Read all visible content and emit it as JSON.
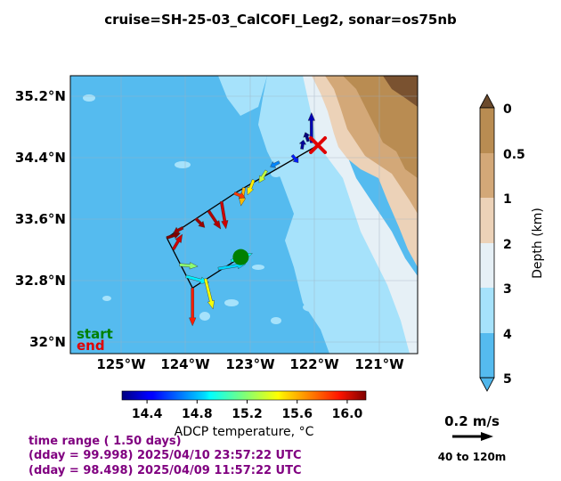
{
  "title": "cruise=SH-25-03_CalCOFI_Leg2,   sonar=os75nb",
  "map": {
    "lat_ticks": [
      "35.2°N",
      "34.4°N",
      "33.6°N",
      "32.8°N",
      "32°N"
    ],
    "lon_ticks": [
      "125°W",
      "124°W",
      "123°W",
      "122°W",
      "121°W"
    ],
    "start_label": "start",
    "end_label": "end",
    "start_color": "#008000",
    "end_color": "#e00000"
  },
  "depth_colorbar": {
    "label": "Depth (km)",
    "ticks": [
      "0",
      "0.5",
      "1",
      "2",
      "3",
      "4",
      "5"
    ],
    "colors": [
      "#7a5230",
      "#b98c52",
      "#d3a878",
      "#ecd2b8",
      "#e6f0f6",
      "#a6e2fb",
      "#55bbef"
    ]
  },
  "temp_colorbar": {
    "label": "ADCP temperature, °C",
    "ticks": [
      "14.4",
      "14.8",
      "15.2",
      "15.6",
      "16.0"
    ],
    "range": [
      14.2,
      16.15
    ]
  },
  "time_range": {
    "line1": "time range ( 1.50 days)",
    "line2": "(dday = 99.998) 2025/04/10 23:57:22 UTC",
    "line3": "(dday = 98.498) 2025/04/09 11:57:22 UTC",
    "color": "#800080"
  },
  "scale_arrow": {
    "speed_label": "0.2 m/s",
    "depth_label": "40 to 120m"
  },
  "chart_data": {
    "type": "quiver",
    "xlim": [
      -125.8,
      -120.4
    ],
    "ylim": [
      31.85,
      35.45
    ],
    "track": [
      {
        "lon": -121.95,
        "lat": 34.55
      },
      {
        "lon": -123.2,
        "lat": 33.95
      },
      {
        "lon": -124.3,
        "lat": 33.35
      },
      {
        "lon": -123.9,
        "lat": 32.7
      },
      {
        "lon": -123.15,
        "lat": 33.1
      }
    ],
    "start": {
      "lon": -123.15,
      "lat": 33.1
    },
    "end": {
      "lon": -121.95,
      "lat": 34.55
    },
    "vectors": [
      {
        "lon": -122.1,
        "lat": 34.6,
        "u": -0.02,
        "v": 0.06,
        "temp": 14.2
      },
      {
        "lon": -122.05,
        "lat": 34.58,
        "u": 0.0,
        "v": 0.2,
        "temp": 14.3
      },
      {
        "lon": -122.2,
        "lat": 34.5,
        "u": 0.01,
        "v": 0.06,
        "temp": 14.25
      },
      {
        "lon": -122.35,
        "lat": 34.42,
        "u": 0.04,
        "v": -0.05,
        "temp": 14.5
      },
      {
        "lon": -122.55,
        "lat": 34.33,
        "u": -0.06,
        "v": -0.03,
        "temp": 14.7
      },
      {
        "lon": -122.75,
        "lat": 34.22,
        "u": -0.05,
        "v": -0.08,
        "temp": 15.3
      },
      {
        "lon": -122.95,
        "lat": 34.1,
        "u": -0.04,
        "v": -0.1,
        "temp": 15.45
      },
      {
        "lon": -123.1,
        "lat": 34.0,
        "u": -0.02,
        "v": -0.12,
        "temp": 15.55
      },
      {
        "lon": -123.25,
        "lat": 33.93,
        "u": 0.07,
        "v": -0.03,
        "temp": 15.8
      },
      {
        "lon": -123.45,
        "lat": 33.82,
        "u": 0.03,
        "v": -0.18,
        "temp": 16.0
      },
      {
        "lon": -123.65,
        "lat": 33.7,
        "u": 0.08,
        "v": -0.12,
        "temp": 16.05
      },
      {
        "lon": -123.85,
        "lat": 33.6,
        "u": 0.06,
        "v": -0.06,
        "temp": 16.1
      },
      {
        "lon": -124.05,
        "lat": 33.48,
        "u": -0.06,
        "v": -0.03,
        "temp": 16.1
      },
      {
        "lon": -124.3,
        "lat": 33.35,
        "u": 0.09,
        "v": 0.03,
        "temp": 16.15
      },
      {
        "lon": -124.2,
        "lat": 33.2,
        "u": 0.06,
        "v": 0.1,
        "temp": 16.0
      },
      {
        "lon": -124.1,
        "lat": 33.0,
        "u": 0.12,
        "v": -0.01,
        "temp": 15.2
      },
      {
        "lon": -124.0,
        "lat": 32.85,
        "u": 0.15,
        "v": -0.04,
        "temp": 14.9
      },
      {
        "lon": -123.9,
        "lat": 32.7,
        "u": 0.0,
        "v": -0.25,
        "temp": 15.85
      },
      {
        "lon": -123.7,
        "lat": 32.82,
        "u": 0.05,
        "v": -0.2,
        "temp": 15.4
      },
      {
        "lon": -123.5,
        "lat": 32.95,
        "u": 0.18,
        "v": 0.03,
        "temp": 14.85
      },
      {
        "lon": -123.3,
        "lat": 33.05,
        "u": 0.14,
        "v": 0.05,
        "temp": 14.95
      }
    ]
  }
}
